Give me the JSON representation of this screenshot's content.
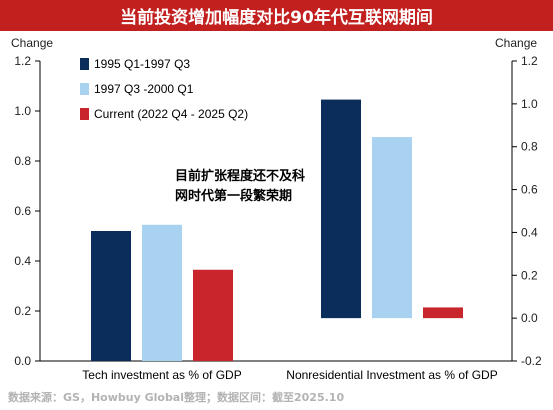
{
  "title": "当前投资增加幅度对比90年代互联网期间",
  "source": "数据来源：GS，Howbuy Global整理；数据区间：截至2025.10",
  "chart_data": [
    {
      "type": "bar",
      "categories": [
        "Tech investment as % of GDP"
      ],
      "ylabel": "Change",
      "ylim": [
        0.0,
        1.2
      ],
      "yticks": [
        "0.0",
        "0.2",
        "0.4",
        "0.6",
        "0.8",
        "1.0",
        "1.2"
      ],
      "axis_side": "left",
      "series": [
        {
          "name": "1995 Q1-1997 Q3",
          "values": [
            0.52
          ],
          "color": "#0b2d5c"
        },
        {
          "name": "1997 Q3 -2000 Q1",
          "values": [
            0.545
          ],
          "color": "#a9d1f0"
        },
        {
          "name": "Current (2022 Q4 - 2025 Q2)",
          "values": [
            0.365
          ],
          "color": "#c8262c"
        }
      ],
      "annotation": "目前扩张程度还不及科网时代第一段繁荣期",
      "legend": "top-left"
    },
    {
      "type": "bar",
      "categories": [
        "Nonresidential Investment as % of GDP"
      ],
      "ylabel": "Change",
      "ylim": [
        -0.2,
        1.2
      ],
      "yticks": [
        "-0.2",
        "0.0",
        "0.2",
        "0.4",
        "0.6",
        "0.8",
        "1.0",
        "1.2"
      ],
      "axis_side": "right",
      "series": [
        {
          "name": "1995 Q1-1997 Q3",
          "values": [
            1.02
          ],
          "color": "#0b2d5c"
        },
        {
          "name": "1997 Q3 -2000 Q1",
          "values": [
            0.845
          ],
          "color": "#a9d1f0"
        },
        {
          "name": "Current (2022 Q4 - 2025 Q2)",
          "values": [
            0.05
          ],
          "color": "#c8262c"
        }
      ]
    }
  ]
}
